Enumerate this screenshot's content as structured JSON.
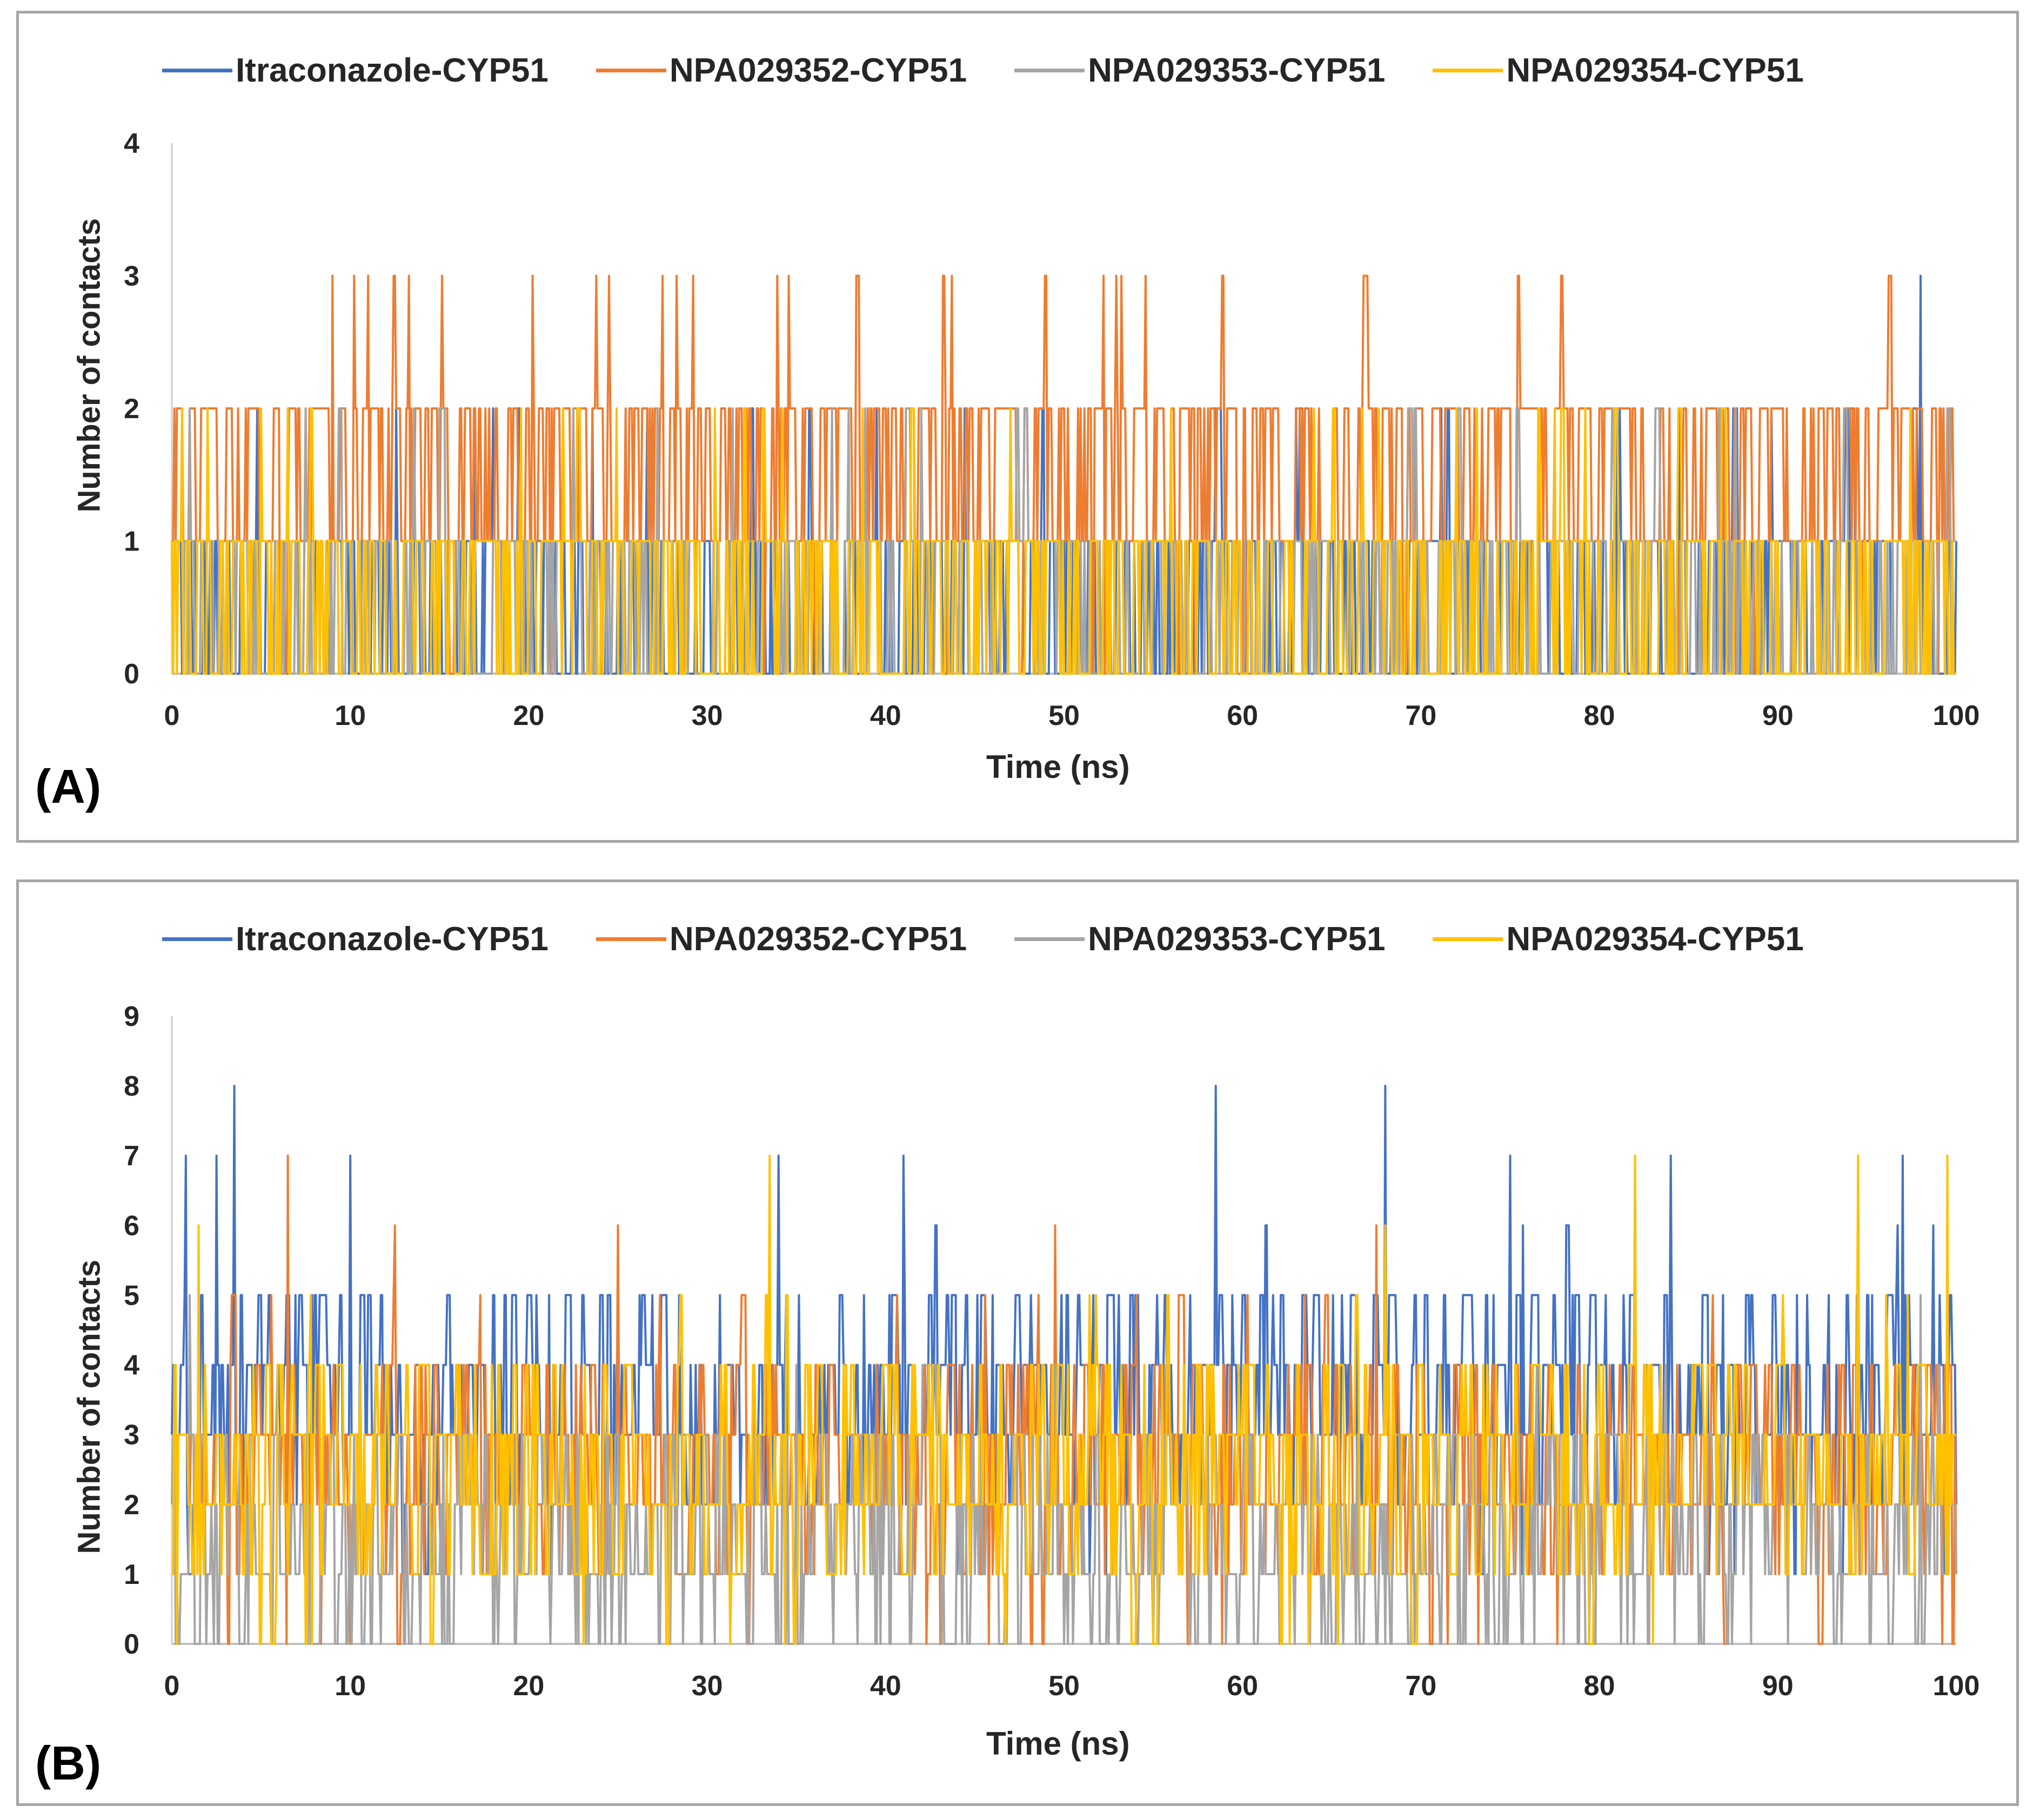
{
  "figure": {
    "panels": [
      {
        "label": "(A)"
      },
      {
        "label": "(B)"
      }
    ]
  },
  "chart_data": [
    {
      "type": "line",
      "panel": "(A)",
      "title": "",
      "xlabel": "Time (ns)",
      "ylabel": "Number of contacts",
      "xlim": [
        0,
        100
      ],
      "ylim": [
        0,
        4
      ],
      "xticks": [
        "0",
        "10",
        "20",
        "30",
        "40",
        "50",
        "60",
        "70",
        "80",
        "90",
        "100"
      ],
      "yticks": [
        "0",
        "1",
        "2",
        "3",
        "4"
      ],
      "legend_position": "top",
      "series": [
        {
          "name": "Itraconazole-CYP51",
          "color": "#4472C4",
          "description": "fluctuates 0-1 with spikes to 2; peak 3 at ~98 ns",
          "peaks": [
            {
              "x": 19.5,
              "y": 2
            },
            {
              "x": 39.5,
              "y": 2
            },
            {
              "x": 71.5,
              "y": 2
            },
            {
              "x": 84.5,
              "y": 2
            },
            {
              "x": 98,
              "y": 3
            }
          ],
          "base_levels": [
            0,
            1
          ],
          "max": 3
        },
        {
          "name": "NPA029352-CYP51",
          "color": "#ED7D31",
          "description": "mostly 1-2 contacts; spikes to 3 at ~9, 10, 12.5, 24.5, 27-29, 52 ns",
          "peaks": [
            {
              "x": 9,
              "y": 3
            },
            {
              "x": 10.2,
              "y": 3
            },
            {
              "x": 12.5,
              "y": 3
            },
            {
              "x": 24.5,
              "y": 3
            },
            {
              "x": 27.5,
              "y": 3
            },
            {
              "x": 29.2,
              "y": 3
            },
            {
              "x": 52.2,
              "y": 3
            }
          ],
          "base_levels": [
            1,
            2
          ],
          "max": 3
        },
        {
          "name": "NPA029353-CYP51",
          "color": "#A5A5A5",
          "description": "mostly 0-1 contacts, occasional 2 in first 45 ns",
          "peaks": [
            {
              "x": 1,
              "y": 2
            },
            {
              "x": 7.5,
              "y": 2
            },
            {
              "x": 15,
              "y": 2
            },
            {
              "x": 42,
              "y": 2
            }
          ],
          "base_levels": [
            0,
            1
          ],
          "max": 2
        },
        {
          "name": "NPA029354-CYP51",
          "color": "#FFC000",
          "description": "mostly 0-1 contacts, occasional 2 early and at ~77 ns",
          "peaks": [
            {
              "x": 2,
              "y": 2
            },
            {
              "x": 5,
              "y": 2
            },
            {
              "x": 77.5,
              "y": 2
            }
          ],
          "base_levels": [
            0,
            1
          ],
          "max": 2
        }
      ]
    },
    {
      "type": "line",
      "panel": "(B)",
      "title": "",
      "xlabel": "Time (ns)",
      "ylabel": "Number of contacts",
      "xlim": [
        0,
        100
      ],
      "ylim": [
        0,
        9
      ],
      "xticks": [
        "0",
        "10",
        "20",
        "30",
        "40",
        "50",
        "60",
        "70",
        "80",
        "90",
        "100"
      ],
      "yticks": [
        "0",
        "1",
        "2",
        "3",
        "4",
        "5",
        "6",
        "7",
        "8",
        "9"
      ],
      "legend_position": "top",
      "series": [
        {
          "name": "Itraconazole-CYP51",
          "color": "#4472C4",
          "description": "fluctuates mostly 2-5 contacts; peaks to 8 at ~3.5, 58.5, 68 ns",
          "peaks": [
            {
              "x": 0.8,
              "y": 7
            },
            {
              "x": 2.5,
              "y": 7
            },
            {
              "x": 3.5,
              "y": 8
            },
            {
              "x": 10,
              "y": 7
            },
            {
              "x": 34,
              "y": 7
            },
            {
              "x": 41,
              "y": 7
            },
            {
              "x": 58.5,
              "y": 8
            },
            {
              "x": 68,
              "y": 8
            },
            {
              "x": 75,
              "y": 7
            },
            {
              "x": 84,
              "y": 7
            },
            {
              "x": 97,
              "y": 7
            }
          ],
          "base_levels": [
            2,
            5
          ],
          "max": 8
        },
        {
          "name": "NPA029352-CYP51",
          "color": "#ED7D31",
          "description": "fluctuates 1-4 contacts; peaks to 7 at ~6.5 ns",
          "peaks": [
            {
              "x": 6.5,
              "y": 7
            },
            {
              "x": 12.5,
              "y": 6
            },
            {
              "x": 25,
              "y": 6
            },
            {
              "x": 49.5,
              "y": 6
            },
            {
              "x": 67.5,
              "y": 6
            }
          ],
          "base_levels": [
            1,
            4
          ],
          "max": 7
        },
        {
          "name": "NPA029353-CYP51",
          "color": "#A5A5A5",
          "description": "fluctuates 0-3 contacts, occasional 4-5",
          "peaks": [
            {
              "x": 1,
              "y": 5
            },
            {
              "x": 35,
              "y": 4
            },
            {
              "x": 98,
              "y": 5
            }
          ],
          "base_levels": [
            0,
            3
          ],
          "max": 5
        },
        {
          "name": "NPA029354-CYP51",
          "color": "#FFC000",
          "description": "fluctuates 1-4 contacts; peaks to 7 at ~33.5, 82, 94.5, 99.5 ns",
          "peaks": [
            {
              "x": 1.5,
              "y": 6
            },
            {
              "x": 33.5,
              "y": 7
            },
            {
              "x": 68,
              "y": 6
            },
            {
              "x": 82,
              "y": 7
            },
            {
              "x": 94.5,
              "y": 7
            },
            {
              "x": 99.5,
              "y": 7
            }
          ],
          "base_levels": [
            1,
            4
          ],
          "max": 7
        }
      ]
    }
  ]
}
